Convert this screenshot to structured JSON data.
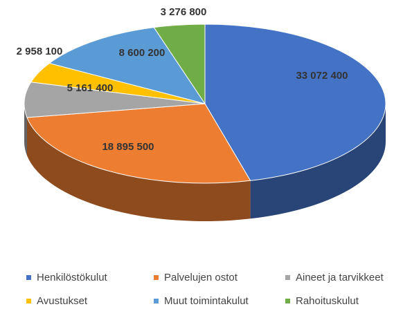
{
  "chart_data": {
    "type": "pie3d",
    "categories": [
      "Henkilöstökulut",
      "Palvelujen ostot",
      "Aineet ja tarvikkeet",
      "Avustukset",
      "Muut toimintakulut",
      "Rahoituskulut"
    ],
    "values": [
      33072400,
      18895500,
      5161400,
      2958100,
      8600200,
      3276800
    ],
    "value_labels": [
      "33 072 400",
      "18 895 500",
      "5 161 400",
      "2 958 100",
      "8 600 200",
      "3 276 800"
    ],
    "colors": [
      "#4472c4",
      "#ed7d31",
      "#a5a5a5",
      "#ffc000",
      "#5b9bd5",
      "#70ad47"
    ],
    "legend": "bottom"
  }
}
